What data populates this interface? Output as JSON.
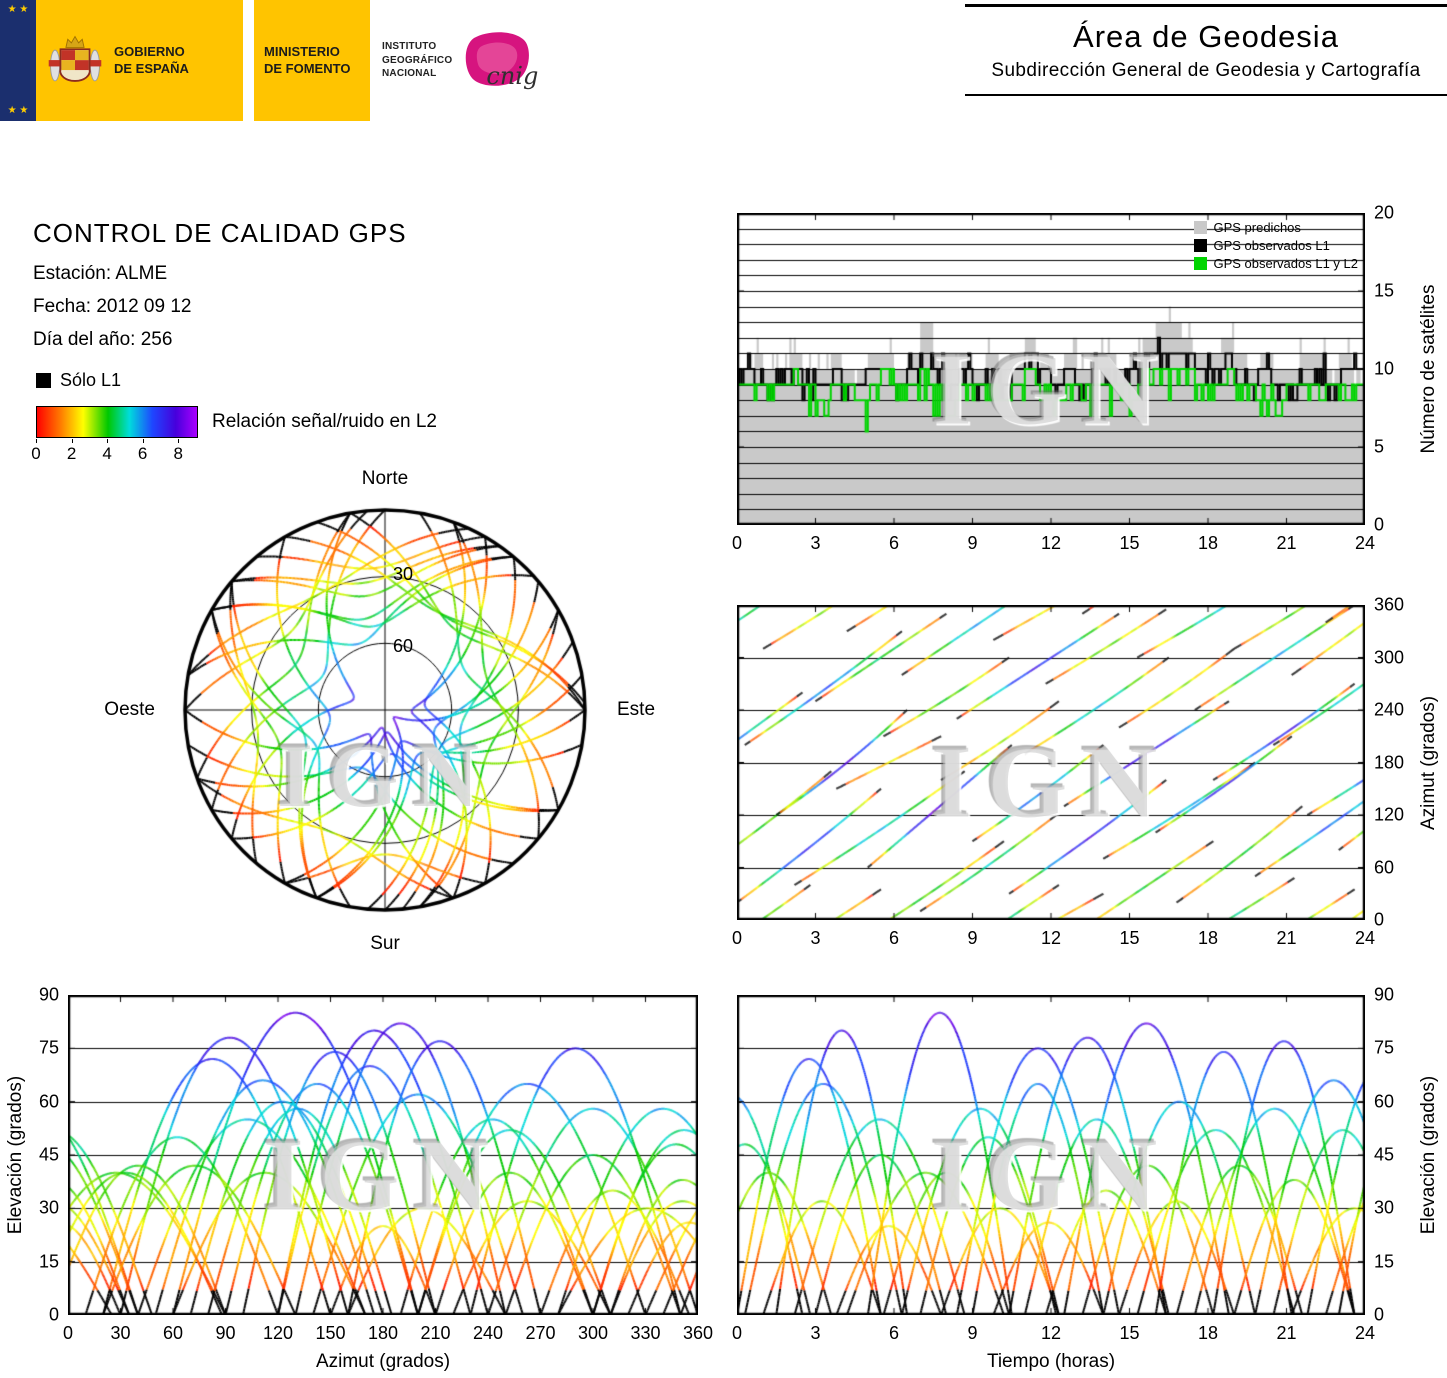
{
  "header": {
    "eu_stars": "★ ★",
    "gobierno": "GOBIERNO\nDE ESPAÑA",
    "ministerio": "MINISTERIO\nDE FOMENTO",
    "instituto": "INSTITUTO\nGEOGRÁFICO\nNACIONAL",
    "cnig": "cnig",
    "area_title": "Área de Geodesia",
    "area_subtitle": "Subdirección General de Geodesia y Cartografía"
  },
  "info": {
    "title": "CONTROL DE CALIDAD GPS",
    "station": "Estación: ALME",
    "date": "Fecha: 2012 09 12",
    "doy": "Día del año: 256"
  },
  "legend": {
    "solo_l1": "Sólo L1",
    "colorbar_label": "Relación señal/ruido en L2",
    "colorbar_ticks": [
      0,
      2,
      4,
      6,
      8
    ]
  },
  "colormap": {
    "domain": [
      0,
      9
    ],
    "stops": [
      [
        0,
        "#ff0000"
      ],
      [
        1.3,
        "#ff7800"
      ],
      [
        2.6,
        "#ffff00"
      ],
      [
        4.0,
        "#00c800"
      ],
      [
        5.2,
        "#00dcdc"
      ],
      [
        6.5,
        "#1e46ff"
      ],
      [
        7.8,
        "#4600dc"
      ],
      [
        9,
        "#aa00ff"
      ]
    ]
  },
  "watermark": "IGN",
  "skyplot": {
    "labels": {
      "north": "Norte",
      "south": "Sur",
      "east": "Este",
      "west": "Oeste"
    },
    "ring_labels": [
      "30",
      "60"
    ],
    "rings_elevation": [
      30,
      60
    ]
  },
  "satellites": {
    "fields": [
      "rise_hour",
      "duration_hours",
      "azimuth_rise_deg",
      "azimuth_mid_deg",
      "azimuth_set_deg",
      "max_elevation_deg"
    ],
    "black_below_elevation": 7,
    "passes": [
      [
        -3.0,
        5.5,
        140,
        200,
        260,
        62
      ],
      [
        -2.2,
        5.0,
        300,
        345,
        400,
        48
      ],
      [
        -1.2,
        4.8,
        60,
        110,
        170,
        40
      ],
      [
        0.0,
        5.5,
        20,
        80,
        150,
        72
      ],
      [
        0.3,
        6.0,
        200,
        260,
        330,
        65
      ],
      [
        1.0,
        4.5,
        310,
        350,
        395,
        32
      ],
      [
        1.5,
        5.0,
        120,
        170,
        240,
        80
      ],
      [
        2.2,
        6.5,
        40,
        100,
        170,
        55
      ],
      [
        3.0,
        5.0,
        250,
        300,
        350,
        45
      ],
      [
        3.8,
        4.0,
        150,
        180,
        210,
        25
      ],
      [
        4.2,
        6.0,
        330,
        385,
        450,
        40
      ],
      [
        5.0,
        5.5,
        60,
        130,
        200,
        85
      ],
      [
        5.6,
        4.8,
        210,
        250,
        300,
        40
      ],
      [
        6.3,
        6.0,
        280,
        340,
        400,
        58
      ],
      [
        7.0,
        5.2,
        10,
        60,
        120,
        50
      ],
      [
        7.8,
        4.5,
        160,
        200,
        250,
        30
      ],
      [
        8.4,
        6.2,
        230,
        290,
        350,
        75
      ],
      [
        9.0,
        5.0,
        90,
        140,
        200,
        65
      ],
      [
        9.8,
        4.2,
        320,
        355,
        390,
        26
      ],
      [
        10.4,
        6.0,
        30,
        90,
        160,
        78
      ],
      [
        11.0,
        5.5,
        190,
        240,
        300,
        55
      ],
      [
        11.8,
        4.6,
        270,
        310,
        355,
        35
      ],
      [
        12.5,
        6.3,
        130,
        190,
        250,
        82
      ],
      [
        13.2,
        5.0,
        350,
        400,
        450,
        42
      ],
      [
        14.0,
        5.8,
        70,
        120,
        180,
        60
      ],
      [
        14.6,
        4.4,
        220,
        260,
        310,
        32
      ],
      [
        15.3,
        6.0,
        300,
        350,
        408,
        52
      ],
      [
        16.0,
        5.2,
        100,
        150,
        210,
        74
      ],
      [
        16.8,
        4.8,
        20,
        70,
        130,
        42
      ],
      [
        17.5,
        6.1,
        240,
        300,
        360,
        58
      ],
      [
        18.2,
        5.4,
        160,
        210,
        270,
        77
      ],
      [
        19.0,
        4.6,
        310,
        350,
        395,
        38
      ],
      [
        19.8,
        6.0,
        50,
        110,
        175,
        66
      ],
      [
        20.5,
        5.3,
        200,
        250,
        310,
        52
      ],
      [
        21.2,
        4.8,
        280,
        330,
        385,
        30
      ],
      [
        21.8,
        5.6,
        120,
        170,
        230,
        70
      ],
      [
        22.5,
        5.0,
        340,
        392,
        448,
        40
      ],
      [
        23.0,
        4.5,
        80,
        130,
        185,
        58
      ]
    ]
  },
  "chart_data": [
    {
      "type": "area",
      "name": "satellite-count",
      "ylabel": "Número de satélites",
      "xlim": [
        0,
        24
      ],
      "ylim": [
        0,
        20
      ],
      "xticks": [
        0,
        3,
        6,
        9,
        12,
        15,
        18,
        21,
        24
      ],
      "yticks": [
        0,
        5,
        10,
        15,
        20
      ],
      "legend": [
        {
          "label": "GPS predichos",
          "color": "#c9c9c9"
        },
        {
          "label": "GPS observados L1",
          "color": "#000000"
        },
        {
          "label": "GPS observados L1 y L2",
          "color": "#00d400"
        }
      ],
      "bin_hours": 0.5,
      "predicted": [
        10,
        11,
        10,
        10,
        11,
        10,
        10,
        11,
        10,
        10,
        11,
        11,
        10,
        11,
        13,
        11,
        10,
        11,
        10,
        11,
        10,
        11,
        12,
        11,
        10,
        11,
        10,
        11,
        11,
        10,
        11,
        12,
        13,
        13,
        12,
        11,
        11,
        12,
        11,
        10,
        11,
        10,
        10,
        11,
        11,
        10,
        11,
        10
      ],
      "observed_l1": [
        10,
        10,
        9,
        10,
        10,
        9,
        9,
        10,
        9,
        9,
        10,
        10,
        9,
        10,
        11,
        10,
        9,
        10,
        9,
        10,
        9,
        10,
        11,
        10,
        9,
        10,
        9,
        10,
        10,
        9,
        10,
        11,
        11,
        11,
        11,
        10,
        10,
        11,
        10,
        9,
        10,
        9,
        9,
        10,
        10,
        9,
        10,
        10
      ],
      "observed_l1_l2": [
        9,
        9,
        9,
        9,
        10,
        9,
        8,
        9,
        9,
        8,
        9,
        10,
        9,
        9,
        10,
        9,
        8,
        9,
        9,
        9,
        8,
        9,
        10,
        9,
        8,
        9,
        9,
        9,
        9,
        9,
        9,
        10,
        10,
        10,
        10,
        9,
        9,
        10,
        9,
        9,
        9,
        8,
        9,
        9,
        9,
        9,
        9,
        9
      ]
    },
    {
      "type": "line",
      "name": "azimuth-time",
      "ylabel": "Azimut (grados)",
      "xlim": [
        0,
        24
      ],
      "ylim": [
        0,
        360
      ],
      "xticks": [
        0,
        3,
        6,
        9,
        12,
        15,
        18,
        21,
        24
      ],
      "yticks": [
        0,
        60,
        120,
        180,
        240,
        300,
        360
      ],
      "x_source": "time",
      "y_source": "azimuth"
    },
    {
      "type": "line",
      "name": "elevation-azimuth",
      "xlabel": "Azimut (grados)",
      "ylabel": "Elevación (grados)",
      "xlim": [
        0,
        360
      ],
      "ylim": [
        0,
        90
      ],
      "xticks": [
        0,
        30,
        60,
        90,
        120,
        150,
        180,
        210,
        240,
        270,
        300,
        330,
        360
      ],
      "yticks": [
        0,
        15,
        30,
        45,
        60,
        75,
        90
      ],
      "x_source": "azimuth",
      "y_source": "elevation"
    },
    {
      "type": "line",
      "name": "elevation-time",
      "xlabel": "Tiempo (horas)",
      "ylabel": "Elevación (grados)",
      "xlim": [
        0,
        24
      ],
      "ylim": [
        0,
        90
      ],
      "xticks": [
        0,
        3,
        6,
        9,
        12,
        15,
        18,
        21,
        24
      ],
      "yticks": [
        0,
        15,
        30,
        45,
        60,
        75,
        90
      ],
      "x_source": "time",
      "y_source": "elevation"
    }
  ]
}
